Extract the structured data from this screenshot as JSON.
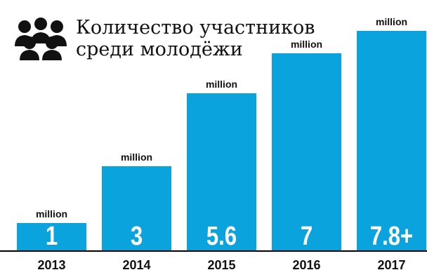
{
  "chart_data": {
    "type": "bar",
    "title_lines": [
      "Количество участников",
      "среди молодёжи"
    ],
    "icon": "people-group-icon",
    "categories": [
      "2013",
      "2014",
      "2015",
      "2016",
      "2017"
    ],
    "values": [
      1,
      3,
      5.6,
      7,
      7.8
    ],
    "value_labels": [
      "1",
      "3",
      "5.6",
      "7",
      "7.8+"
    ],
    "unit_label": "million",
    "colors": {
      "bar": "#0aa3de",
      "value_text": "#ffffff",
      "text": "#111111",
      "baseline": "#000000"
    }
  }
}
